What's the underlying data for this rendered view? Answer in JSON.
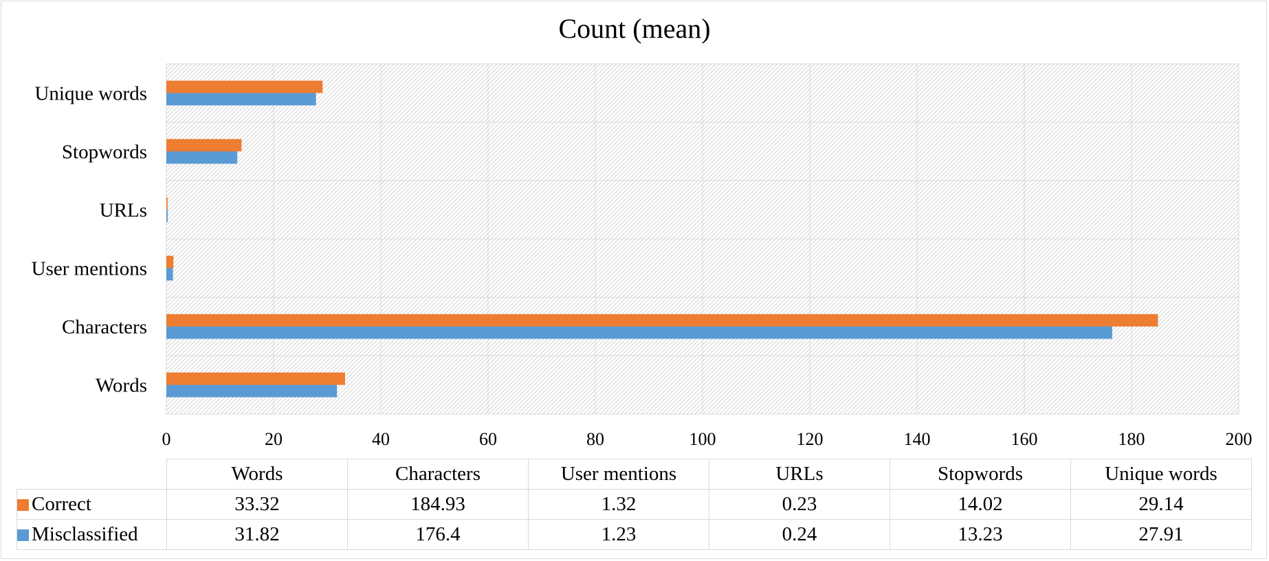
{
  "chart_data": {
    "type": "bar",
    "orientation": "horizontal",
    "title": "Count (mean)",
    "categories": [
      "Words",
      "Characters",
      "User mentions",
      "URLs",
      "Stopwords",
      "Unique words"
    ],
    "series": [
      {
        "name": "Correct",
        "color": "#ED7D31",
        "values": [
          33.32,
          184.93,
          1.32,
          0.23,
          14.02,
          29.14
        ],
        "labels": [
          "33.32",
          "184.93",
          "1.32",
          "0.23",
          "14.02",
          "29.14"
        ]
      },
      {
        "name": "Misclassified",
        "color": "#5B9BD5",
        "values": [
          31.82,
          176.4,
          1.23,
          0.24,
          13.23,
          27.91
        ],
        "labels": [
          "31.82",
          "176.4",
          "1.23",
          "0.24",
          "13.23",
          "27.91"
        ]
      }
    ],
    "xlim": [
      0,
      200
    ],
    "xticks": [
      "0",
      "20",
      "40",
      "60",
      "80",
      "100",
      "120",
      "140",
      "160",
      "180",
      "200"
    ],
    "grid": true,
    "legend": "data-table-below"
  }
}
